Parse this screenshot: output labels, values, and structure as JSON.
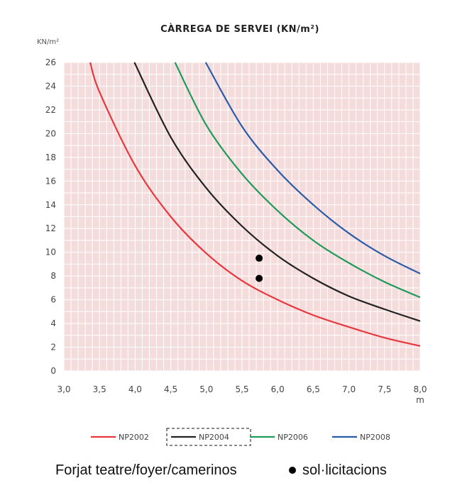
{
  "chart_data": {
    "type": "line",
    "title": "CÀRREGA DE SERVEI (KN/m²)",
    "ylabel": "KN/m²",
    "xlabel": "m",
    "xlim": [
      3.0,
      8.0
    ],
    "ylim": [
      0,
      26
    ],
    "x_ticks": [
      "3,0",
      "3,5",
      "4,0",
      "4,5",
      "5,0",
      "5,5",
      "6,0",
      "6,5",
      "7,0",
      "7,5",
      "8,0"
    ],
    "y_ticks": [
      "0",
      "2",
      "4",
      "6",
      "8",
      "10",
      "12",
      "14",
      "16",
      "18",
      "20",
      "22",
      "24",
      "26"
    ],
    "grid": true,
    "background_color": "#f5dcdc",
    "grid_color": "#ffffff",
    "legend_position": "bottom",
    "series": [
      {
        "name": "NP2002",
        "color": "#e8373e",
        "points": [
          [
            3.37,
            26
          ],
          [
            3.5,
            23.5
          ],
          [
            4.0,
            17.3
          ],
          [
            4.5,
            13.0
          ],
          [
            5.0,
            9.9
          ],
          [
            5.5,
            7.6
          ],
          [
            6.0,
            6.0
          ],
          [
            6.5,
            4.7
          ],
          [
            7.0,
            3.7
          ],
          [
            7.5,
            2.8
          ],
          [
            8.0,
            2.1
          ]
        ]
      },
      {
        "name": "NP2004",
        "color": "#222222",
        "highlighted": true,
        "points": [
          [
            3.99,
            26
          ],
          [
            4.5,
            19.7
          ],
          [
            5.0,
            15.4
          ],
          [
            5.5,
            12.2
          ],
          [
            6.0,
            9.7
          ],
          [
            6.5,
            7.8
          ],
          [
            7.0,
            6.3
          ],
          [
            7.5,
            5.2
          ],
          [
            8.0,
            4.2
          ]
        ]
      },
      {
        "name": "NP2006",
        "color": "#1f9a5a",
        "points": [
          [
            4.56,
            26
          ],
          [
            5.0,
            20.7
          ],
          [
            5.5,
            16.6
          ],
          [
            6.0,
            13.5
          ],
          [
            6.5,
            11.0
          ],
          [
            7.0,
            9.1
          ],
          [
            7.5,
            7.5
          ],
          [
            8.0,
            6.2
          ]
        ]
      },
      {
        "name": "NP2008",
        "color": "#2a5ca8",
        "points": [
          [
            4.99,
            26
          ],
          [
            5.5,
            20.6
          ],
          [
            6.0,
            16.9
          ],
          [
            6.5,
            14.0
          ],
          [
            7.0,
            11.6
          ],
          [
            7.5,
            9.7
          ],
          [
            8.0,
            8.2
          ]
        ]
      }
    ],
    "annotations": [
      {
        "type": "point",
        "x": 5.74,
        "y": 9.5
      },
      {
        "type": "point",
        "x": 5.74,
        "y": 7.8
      }
    ]
  },
  "caption": {
    "text": "Forjat teatre/foyer/camerinos",
    "legend_text": "sol·licitacions"
  }
}
